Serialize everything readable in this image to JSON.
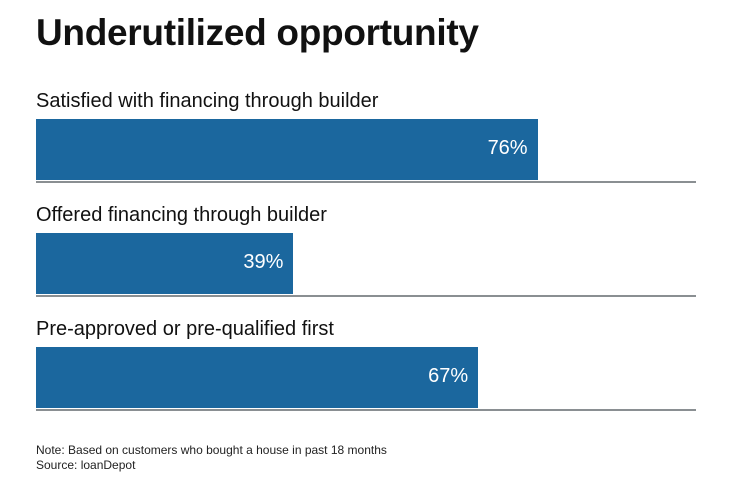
{
  "chart_data": {
    "type": "bar",
    "orientation": "horizontal",
    "title": "Underutilized opportunity",
    "categories": [
      "Satisfied with financing through builder",
      "Offered financing through builder",
      "Pre-approved or pre-qualified first"
    ],
    "values": [
      76,
      39,
      67
    ],
    "data_labels": [
      "76%",
      "39%",
      "67%"
    ],
    "xlim": [
      0,
      100
    ],
    "unit": "%",
    "grid": false,
    "bar_color": "#1b679e"
  },
  "footer": {
    "note": "Note: Based on customers who bought a house in past 18 months",
    "source": "Source: loanDepot"
  }
}
